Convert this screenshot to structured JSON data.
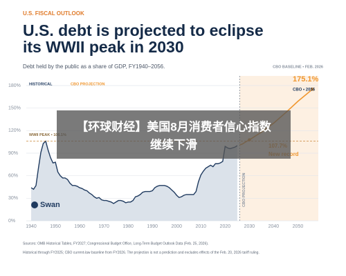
{
  "kicker": "U.S. FISCAL OUTLOOK",
  "chart_data": {
    "type": "line",
    "title": [
      "U.S. debt is projected to eclipse",
      "its WWII peak in 2030"
    ],
    "subtitle": "Debt held by the public as a share of GDP, FY1940–2056.",
    "baseline_note": "CBO BASELINE • FEB. 2026",
    "xlim": [
      1936,
      2061
    ],
    "xticks": [
      1940,
      1950,
      1960,
      1970,
      1980,
      1990,
      2000,
      2010,
      2020,
      2030,
      2040,
      2050
    ],
    "ylim": [
      0,
      180
    ],
    "yticks": [
      {
        "value": 0,
        "label": "0%"
      },
      {
        "value": 30,
        "label": "30%"
      },
      {
        "value": 60,
        "label": "60%"
      },
      {
        "value": 90,
        "label": "90%"
      },
      {
        "value": 120,
        "label": "120%"
      },
      {
        "value": 150,
        "label": "150%"
      },
      {
        "value": 180,
        "label": "180%"
      }
    ],
    "grid": true,
    "series": [
      {
        "name": "HISTORICAL",
        "color": "#1f3a5f",
        "x": [
          1940,
          1941,
          1942,
          1943,
          1944,
          1945,
          1946,
          1947,
          1948,
          1949,
          1950,
          1951,
          1952,
          1953,
          1954,
          1955,
          1956,
          1957,
          1958,
          1959,
          1960,
          1961,
          1962,
          1963,
          1964,
          1965,
          1966,
          1967,
          1968,
          1969,
          1970,
          1971,
          1972,
          1973,
          1974,
          1975,
          1976,
          1977,
          1978,
          1979,
          1980,
          1981,
          1982,
          1983,
          1984,
          1985,
          1986,
          1987,
          1988,
          1989,
          1990,
          1991,
          1992,
          1993,
          1994,
          1995,
          1996,
          1997,
          1998,
          1999,
          2000,
          2001,
          2002,
          2003,
          2004,
          2005,
          2006,
          2007,
          2008,
          2009,
          2010,
          2011,
          2012,
          2013,
          2014,
          2015,
          2016,
          2017,
          2018,
          2019,
          2020,
          2021,
          2022,
          2023,
          2024,
          2025
        ],
        "values": [
          44,
          42,
          47,
          70,
          91,
          103,
          106,
          94,
          84,
          77,
          78,
          65,
          60,
          57,
          57,
          55,
          50,
          47,
          47,
          46,
          44,
          43,
          41,
          40,
          37,
          35,
          32,
          30,
          31,
          28,
          27,
          27,
          26,
          25,
          23,
          25,
          27,
          27,
          26,
          24,
          25,
          25,
          27,
          32,
          33,
          35,
          38,
          39,
          39,
          39,
          40,
          44,
          46,
          47,
          47,
          47,
          46,
          44,
          41,
          38,
          34,
          31,
          32,
          34,
          35,
          35,
          35,
          35,
          39,
          52,
          61,
          66,
          70,
          72,
          74,
          72,
          76,
          76,
          77,
          79,
          99,
          97,
          96,
          97,
          98,
          100
        ]
      },
      {
        "name": "CBO PROJECTION",
        "color": "#f0962e",
        "x": [
          2026,
          2027,
          2028,
          2029,
          2030,
          2035,
          2040,
          2045,
          2050,
          2056
        ],
        "values": [
          101,
          102,
          104,
          106,
          107.7,
          118,
          130,
          144,
          159,
          175.1
        ]
      }
    ],
    "peak_line": {
      "value": 106.1,
      "label": "WWII PEAK • 106.1%"
    },
    "annotations": [
      "175.1%",
      "CBO • 2056",
      "107.7%",
      "New record"
    ],
    "logo": "Swan",
    "sources": [
      "Sources: OMB Historical Tables, FY2027; Congressional Budget Office, Long-Term Budget Outlook Data (Feb. 25, 2026).",
      "Historical through FY2025; CBO current-law baseline from FY2026. The projection is not a prediction and excludes effects of the Feb. 20, 2026 tariff ruling."
    ]
  },
  "overlay": {
    "lines": [
      "【环球财经】美国8月消费者信心指数",
      "继续下滑"
    ]
  }
}
